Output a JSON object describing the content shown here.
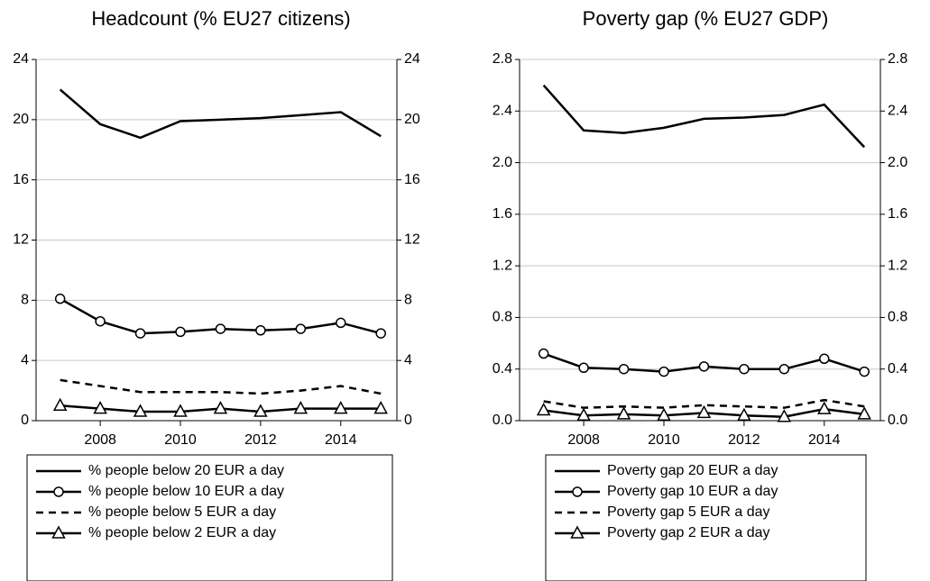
{
  "chart_data": [
    {
      "type": "line",
      "title": "Headcount (% EU27 citizens)",
      "x": [
        2007,
        2008,
        2009,
        2010,
        2011,
        2012,
        2013,
        2014,
        2015
      ],
      "xlim": [
        2006.4,
        2015.4
      ],
      "xticks": [
        2008,
        2010,
        2012,
        2014
      ],
      "ylim": [
        0,
        24
      ],
      "yticks": [
        0,
        4,
        8,
        12,
        16,
        20,
        24
      ],
      "y2lim": [
        0,
        24
      ],
      "y2ticks": [
        0,
        4,
        8,
        12,
        16,
        20,
        24
      ],
      "grid": true,
      "series": [
        {
          "name": "% people below 20 EUR a day",
          "color": "#000000",
          "marker": "none",
          "dash": false,
          "values": [
            22.0,
            19.7,
            18.8,
            19.9,
            20.0,
            20.1,
            20.3,
            20.5,
            18.9
          ]
        },
        {
          "name": "% people below 10 EUR a day",
          "color": "#000000",
          "marker": "circle",
          "dash": false,
          "values": [
            8.1,
            6.6,
            5.8,
            5.9,
            6.1,
            6.0,
            6.1,
            6.5,
            5.8
          ]
        },
        {
          "name": "% people below 5 EUR a day",
          "color": "#000000",
          "marker": "none",
          "dash": true,
          "values": [
            2.7,
            2.3,
            1.9,
            1.9,
            1.9,
            1.8,
            2.0,
            2.3,
            1.8
          ]
        },
        {
          "name": "% people below 2 EUR a day",
          "color": "#000000",
          "marker": "triangle",
          "dash": false,
          "values": [
            1.0,
            0.8,
            0.6,
            0.6,
            0.8,
            0.6,
            0.8,
            0.8,
            0.8
          ]
        }
      ]
    },
    {
      "type": "line",
      "title": "Poverty gap (% EU27 GDP)",
      "x": [
        2007,
        2008,
        2009,
        2010,
        2011,
        2012,
        2013,
        2014,
        2015
      ],
      "xlim": [
        2006.4,
        2015.4
      ],
      "xticks": [
        2008,
        2010,
        2012,
        2014
      ],
      "ylim": [
        0,
        2.8
      ],
      "yticks": [
        {
          "value": 0,
          "label": "0.0"
        },
        0.4,
        0.8,
        1.2,
        1.6,
        {
          "value": 2,
          "label": "2.0"
        },
        2.4,
        2.8
      ],
      "y2lim": [
        0,
        2.8
      ],
      "y2ticks": [
        {
          "value": 0,
          "label": "0.0"
        },
        0.4,
        0.8,
        1.2,
        1.6,
        {
          "value": 2,
          "label": "2.0"
        },
        2.4,
        2.8
      ],
      "grid": true,
      "series": [
        {
          "name": "Poverty gap 20 EUR a day",
          "color": "#000000",
          "marker": "none",
          "dash": false,
          "values": [
            2.6,
            2.25,
            2.23,
            2.27,
            2.34,
            2.35,
            2.37,
            2.45,
            2.12
          ]
        },
        {
          "name": "Poverty gap 10 EUR a day",
          "color": "#000000",
          "marker": "circle",
          "dash": false,
          "values": [
            0.52,
            0.41,
            0.4,
            0.38,
            0.42,
            0.4,
            0.4,
            0.48,
            0.38
          ]
        },
        {
          "name": "Poverty gap 5 EUR a day",
          "color": "#000000",
          "marker": "none",
          "dash": true,
          "values": [
            0.15,
            0.1,
            0.11,
            0.1,
            0.12,
            0.11,
            0.1,
            0.16,
            0.11
          ]
        },
        {
          "name": "Poverty gap 2 EUR a day",
          "color": "#000000",
          "marker": "triangle",
          "dash": false,
          "values": [
            0.08,
            0.04,
            0.05,
            0.04,
            0.06,
            0.04,
            0.03,
            0.09,
            0.05
          ]
        }
      ]
    }
  ]
}
